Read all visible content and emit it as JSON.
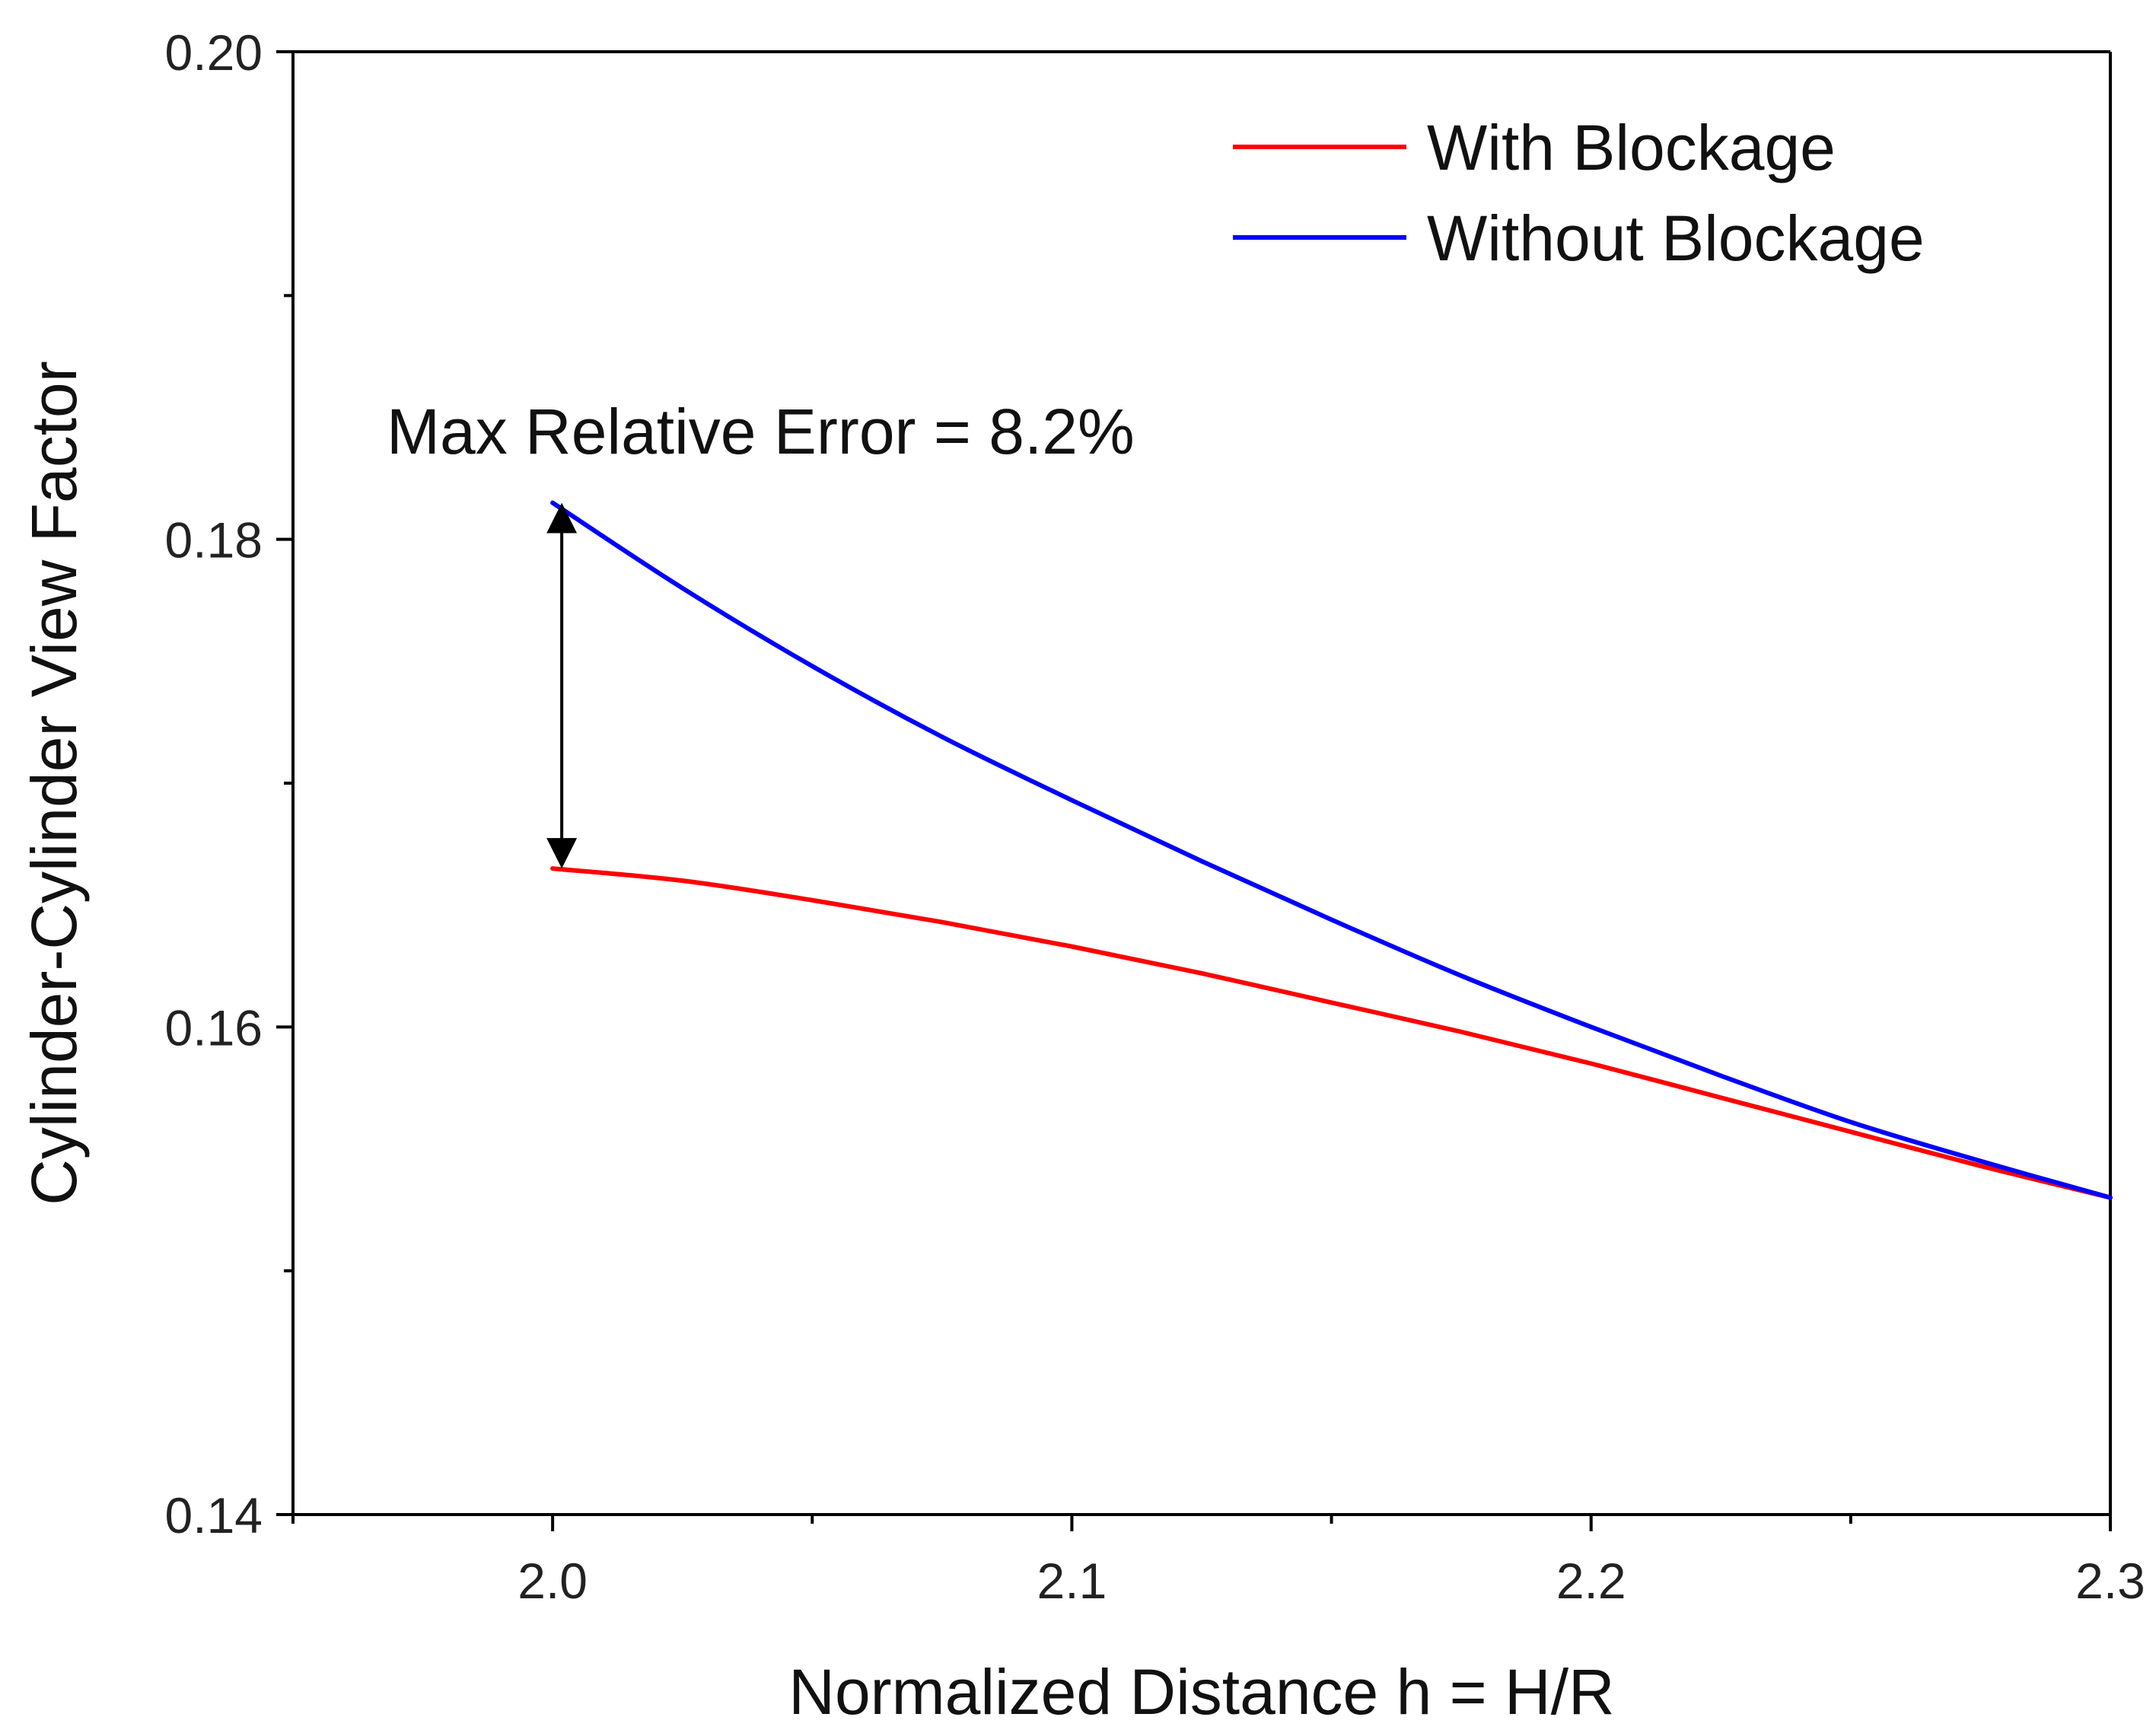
{
  "chart_data": {
    "type": "line",
    "title": "",
    "xlabel": "Normalized Distance h = H/R",
    "ylabel": "Cylinder-Cylinder View Factor",
    "xlim": [
      1.95,
      2.3
    ],
    "ylim": [
      0.14,
      0.2
    ],
    "x_ticks": [
      2.0,
      2.1,
      2.2,
      2.3
    ],
    "x_tick_labels": [
      "2.0",
      "2.1",
      "2.2",
      "2.3"
    ],
    "x_minor_ticks": [
      1.95,
      2.05,
      2.15,
      2.25
    ],
    "y_ticks": [
      0.14,
      0.16,
      0.18,
      0.2
    ],
    "y_tick_labels": [
      "0.14",
      "0.16",
      "0.18",
      "0.20"
    ],
    "y_minor_ticks": [
      0.15,
      0.17,
      0.19
    ],
    "grid": false,
    "legend_position": "top-right",
    "series": [
      {
        "name": "With Blockage",
        "color": "#ff0000",
        "x": [
          2.0,
          2.025,
          2.05,
          2.075,
          2.1,
          2.125,
          2.15,
          2.175,
          2.2,
          2.225,
          2.25,
          2.275,
          2.3
        ],
        "y": [
          0.1665,
          0.166,
          0.1652,
          0.1643,
          0.1633,
          0.1622,
          0.161,
          0.1598,
          0.1585,
          0.1571,
          0.1557,
          0.1543,
          0.153
        ]
      },
      {
        "name": "Without Blockage",
        "color": "#0000ff",
        "x": [
          2.0,
          2.025,
          2.05,
          2.075,
          2.1,
          2.125,
          2.15,
          2.175,
          2.2,
          2.225,
          2.25,
          2.275,
          2.3
        ],
        "y": [
          0.1815,
          0.178,
          0.1748,
          0.1719,
          0.1693,
          0.1668,
          0.1644,
          0.1621,
          0.16,
          0.158,
          0.1561,
          0.1545,
          0.153
        ]
      }
    ],
    "annotations": [
      {
        "text": "Max Relative Error = 8.2%",
        "arrow_x": 2.0,
        "arrow_y_from": 0.1665,
        "arrow_y_to": 0.1815
      }
    ]
  }
}
